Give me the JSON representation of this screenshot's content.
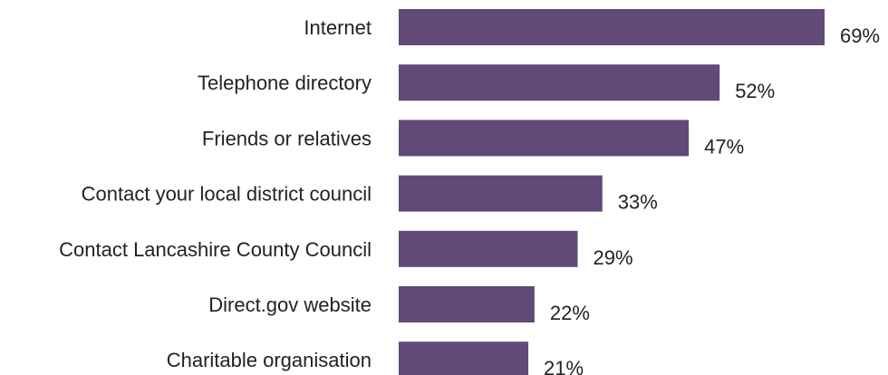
{
  "chart_data": {
    "type": "bar",
    "orientation": "horizontal",
    "categories": [
      "Internet",
      "Telephone directory",
      "Friends or relatives",
      "Contact your local district council",
      "Contact Lancashire County Council",
      "Direct.gov website",
      "Charitable organisation"
    ],
    "values": [
      69,
      52,
      47,
      33,
      29,
      22,
      21
    ],
    "value_labels": [
      "69%",
      "52%",
      "47%",
      "33%",
      "29%",
      "22%",
      "21%"
    ],
    "unit": "%",
    "xlim": [
      0,
      69
    ],
    "grid": false,
    "legend": "none",
    "bar_color": "#614A78"
  }
}
